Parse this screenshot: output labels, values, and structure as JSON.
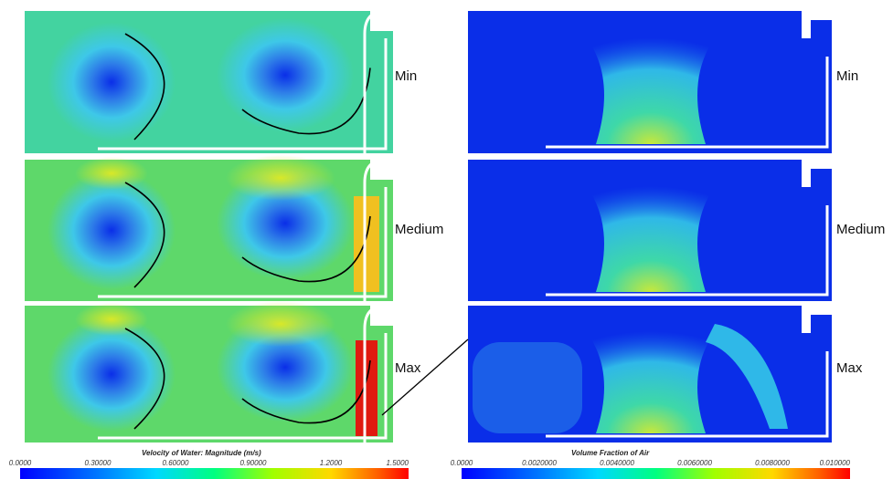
{
  "panels": [
    {
      "label": "Min"
    },
    {
      "label": "Medium"
    },
    {
      "label": "Max"
    }
  ],
  "colorbars": [
    {
      "title": "Velocity of Water: Magnitude (m/s)",
      "ticks": [
        "0.0000",
        "0.30000",
        "0.60000",
        "0.90000",
        "1.2000",
        "1.5000"
      ]
    },
    {
      "title": "Volume Fraction of Air",
      "ticks": [
        "0.0000",
        "0.0020000",
        "0.0040000",
        "0.0060000",
        "0.0080000",
        "0.010000"
      ]
    }
  ]
}
